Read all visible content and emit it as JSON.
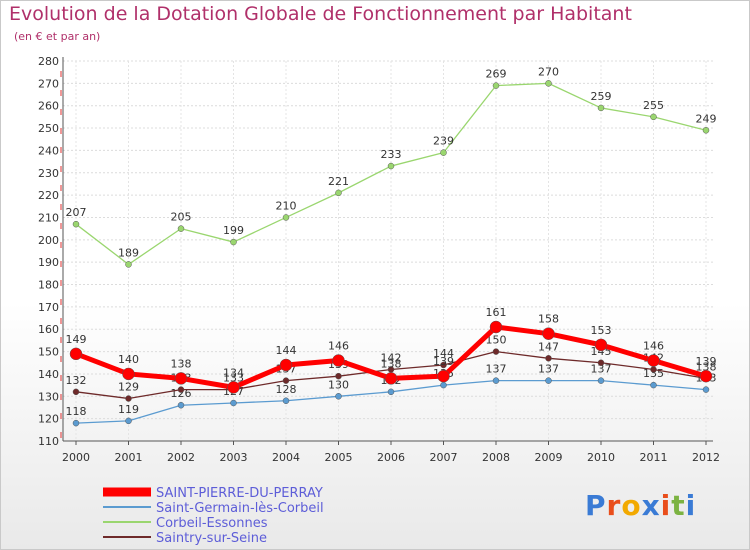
{
  "title": "Evolution de la Dotation Globale de Fonctionnement par Habitant",
  "subtitle": "(en € et par an)",
  "logo": {
    "text": "Proxiti",
    "letters": [
      "P",
      "r",
      "o",
      "x",
      "i",
      "t",
      "i"
    ],
    "colors": [
      "#3a7bd5",
      "#e94e1b",
      "#f2a900",
      "#3a7bd5",
      "#e94e1b",
      "#7cb342",
      "#3a7bd5"
    ]
  },
  "chart_data": {
    "type": "line",
    "title": "Evolution de la Dotation Globale de Fonctionnement par Habitant",
    "subtitle": "(en € et par an)",
    "xlabel": "",
    "ylabel": "",
    "ylim": [
      110,
      280
    ],
    "yticks": [
      110,
      120,
      130,
      140,
      150,
      160,
      170,
      180,
      190,
      200,
      210,
      220,
      230,
      240,
      250,
      260,
      270,
      280
    ],
    "x": [
      "2000",
      "2001",
      "2002",
      "2003",
      "2004",
      "2005",
      "2006",
      "2007",
      "2008",
      "2009",
      "2010",
      "2011",
      "2012"
    ],
    "legend_position": "bottom-left",
    "series": [
      {
        "name": "Saint-Germain-lès-Corbeil",
        "color": "#5b9bd0",
        "values": [
          118,
          119,
          126,
          127,
          128,
          130,
          132,
          135,
          137,
          137,
          137,
          135,
          133
        ]
      },
      {
        "name": "Corbeil-Essonnes",
        "color": "#9ad66f",
        "values": [
          207,
          189,
          205,
          199,
          210,
          221,
          233,
          239,
          269,
          270,
          259,
          255,
          249
        ]
      },
      {
        "name": "Saintry-sur-Seine",
        "color": "#6e2a2a",
        "values": [
          132,
          129,
          133,
          133,
          137,
          139,
          142,
          144,
          150,
          147,
          145,
          142,
          138
        ]
      },
      {
        "name": "SAINT-PIERRE-DU-PERRAY",
        "color": "#ff0000",
        "values": [
          149,
          140,
          138,
          134,
          144,
          146,
          138,
          139,
          161,
          158,
          153,
          146,
          139
        ]
      }
    ],
    "legend_order": [
      "SAINT-PIERRE-DU-PERRAY",
      "Saint-Germain-lès-Corbeil",
      "Corbeil-Essonnes",
      "Saintry-sur-Seine"
    ]
  }
}
